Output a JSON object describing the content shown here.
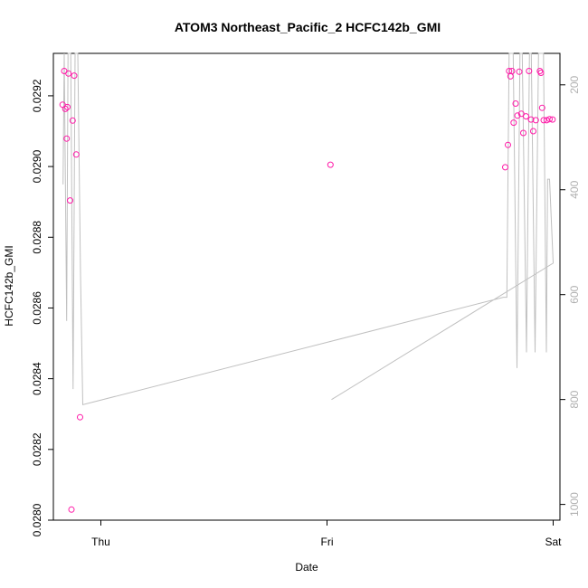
{
  "chart_data": {
    "type": "scatter",
    "title": "ATOM3 Northeast_Pacific_2 HCFC142b_GMI",
    "xlabel": "Date",
    "ylabel": "HCFC142b_GMI",
    "x_tick_labels": [
      "Thu",
      "Fri",
      "Sat"
    ],
    "x_tick_values": [
      1.0,
      2.0,
      3.0
    ],
    "xlim": [
      0.79,
      3.03
    ],
    "ylim": [
      0.028,
      0.02932
    ],
    "y_ticks": [
      "0.0280",
      "0.0282",
      "0.0284",
      "0.0286",
      "0.0288",
      "0.0290",
      "0.0292"
    ],
    "y_tick_values": [
      0.028,
      0.0282,
      0.0284,
      0.0286,
      0.0288,
      0.029,
      0.0292
    ],
    "y2_ticks": [
      "200",
      "400",
      "600",
      "800",
      "1000"
    ],
    "y2_tick_values": [
      200,
      400,
      600,
      800,
      1000
    ],
    "y2lim": [
      1030,
      140
    ],
    "grid": false,
    "colors": {
      "points": "#ff1aa8",
      "pressure_line": "#c0c0c0",
      "axis": "#000000"
    },
    "series": [
      {
        "type": "scatter",
        "points": [
          [
            0.831,
            0.029175
          ],
          [
            0.838,
            0.02927
          ],
          [
            0.843,
            0.029163
          ],
          [
            0.849,
            0.029079
          ],
          [
            0.852,
            0.029168
          ],
          [
            0.857,
            0.029263
          ],
          [
            0.864,
            0.028904
          ],
          [
            0.87,
            0.02803
          ],
          [
            0.875,
            0.02913
          ],
          [
            0.882,
            0.029257
          ],
          [
            0.891,
            0.029034
          ],
          [
            0.908,
            0.028291
          ],
          [
            2.015,
            0.029005
          ],
          [
            2.788,
            0.028998
          ],
          [
            2.8,
            0.029061
          ],
          [
            2.805,
            0.02927
          ],
          [
            2.811,
            0.029255
          ],
          [
            2.818,
            0.02927
          ],
          [
            2.825,
            0.029124
          ],
          [
            2.834,
            0.029178
          ],
          [
            2.842,
            0.029144
          ],
          [
            2.85,
            0.029268
          ],
          [
            2.859,
            0.029149
          ],
          [
            2.868,
            0.029095
          ],
          [
            2.88,
            0.029142
          ],
          [
            2.893,
            0.02927
          ],
          [
            2.902,
            0.029133
          ],
          [
            2.912,
            0.0291
          ],
          [
            2.923,
            0.029131
          ],
          [
            2.941,
            0.02927
          ],
          [
            2.946,
            0.029265
          ],
          [
            2.951,
            0.029166
          ],
          [
            2.958,
            0.029131
          ],
          [
            2.971,
            0.029131
          ],
          [
            2.984,
            0.029134
          ],
          [
            2.997,
            0.029133
          ]
        ]
      },
      {
        "type": "line",
        "axis": "y2",
        "points": [
          [
            0.833,
            390
          ],
          [
            0.838,
            140
          ],
          [
            0.849,
            650
          ],
          [
            0.855,
            140
          ],
          [
            0.867,
            140
          ],
          [
            0.877,
            780
          ],
          [
            0.886,
            140
          ],
          [
            0.898,
            140
          ],
          [
            0.91,
            560
          ],
          [
            0.92,
            810
          ],
          [
            2.78,
            605
          ],
          [
            2.795,
            605
          ],
          [
            2.805,
            140
          ],
          [
            2.81,
            140
          ],
          [
            2.823,
            140
          ],
          [
            2.84,
            740
          ],
          [
            2.853,
            140
          ],
          [
            2.863,
            140
          ],
          [
            2.882,
            710
          ],
          [
            2.895,
            140
          ],
          [
            2.903,
            140
          ],
          [
            2.92,
            710
          ],
          [
            2.935,
            140
          ],
          [
            2.946,
            140
          ],
          [
            2.957,
            140
          ],
          [
            2.97,
            710
          ],
          [
            2.975,
            380
          ],
          [
            2.984,
            380
          ],
          [
            3.0,
            540
          ],
          [
            2.02,
            800
          ]
        ]
      }
    ]
  }
}
